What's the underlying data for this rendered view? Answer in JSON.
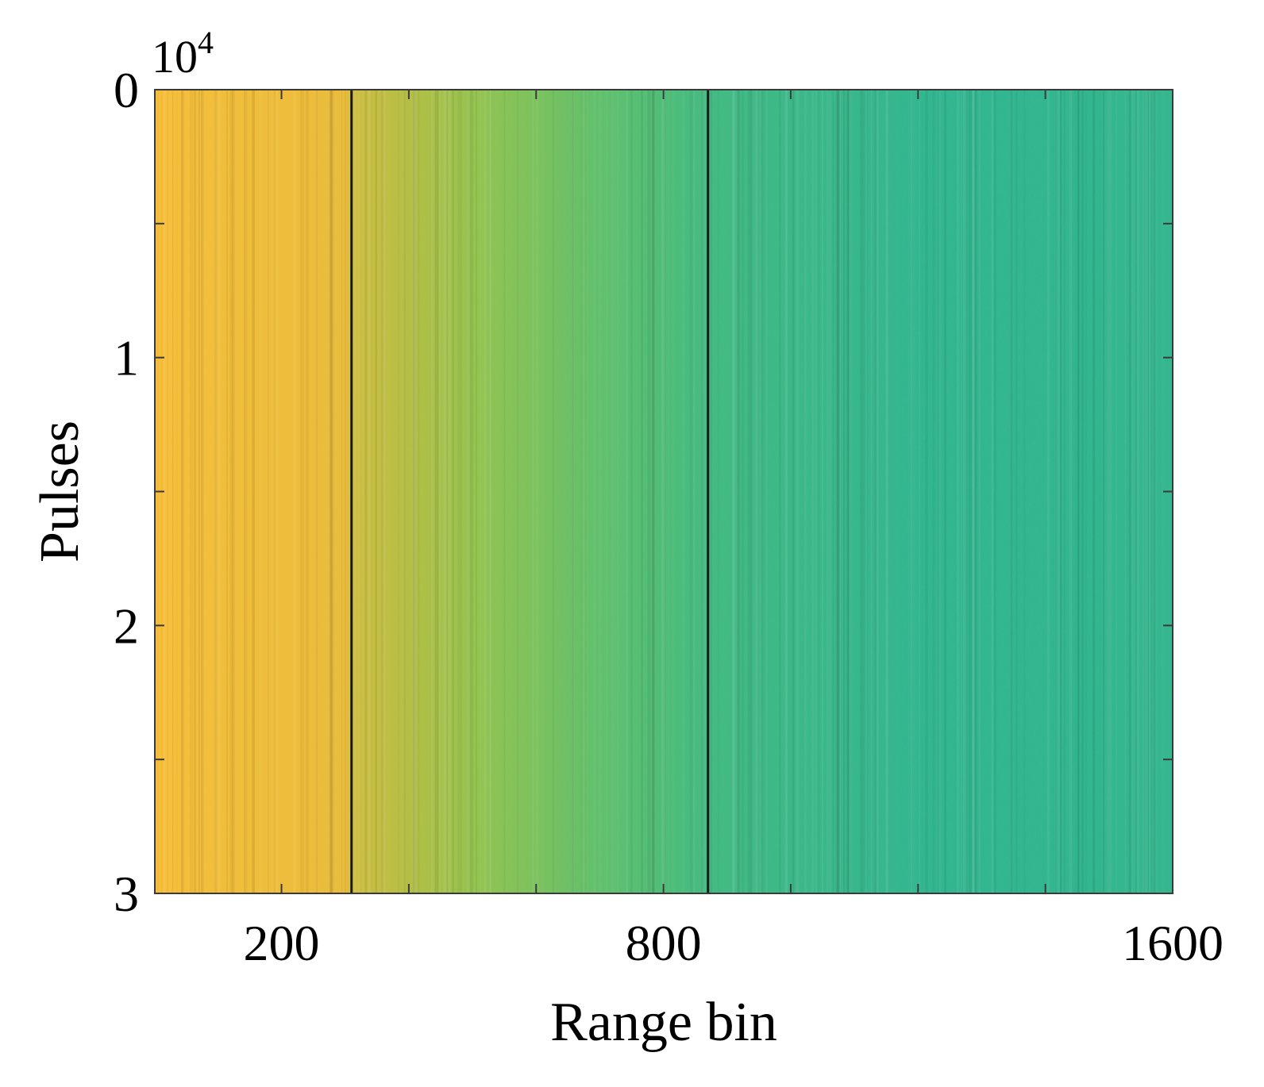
{
  "chart_data": {
    "type": "heatmap",
    "title": "",
    "xlabel": "Range bin",
    "ylabel": "Pulses",
    "y_exponent_base": "10",
    "y_exponent_power": "4",
    "xlim": [
      1,
      1600
    ],
    "ylim": [
      0,
      3
    ],
    "y_reversed": true,
    "x_ticks": [
      200,
      800,
      1600
    ],
    "x_tick_labels": [
      "200",
      "800",
      "1600"
    ],
    "x_minor_ticks": [
      400,
      600,
      1000,
      1200,
      1400
    ],
    "y_ticks": [
      0,
      1,
      2,
      3
    ],
    "y_tick_labels": [
      "0",
      "1",
      "2",
      "3"
    ],
    "y_minor_ticks": [
      0.5,
      1.5,
      2.5
    ],
    "grid": false,
    "colormap": "parula",
    "colormap_stops": [
      "#f9c03a",
      "#e6bb3c",
      "#c3bd40",
      "#8fc452",
      "#58bf72",
      "#2fb592",
      "#21b0a6"
    ],
    "intensity_by_range_bin": [
      {
        "bin": 1,
        "level": 0.98
      },
      {
        "bin": 100,
        "level": 0.93
      },
      {
        "bin": 200,
        "level": 0.9
      },
      {
        "bin": 300,
        "level": 0.86
      },
      {
        "bin": 310,
        "level": 0.72
      },
      {
        "bin": 400,
        "level": 0.62
      },
      {
        "bin": 500,
        "level": 0.52
      },
      {
        "bin": 600,
        "level": 0.44
      },
      {
        "bin": 700,
        "level": 0.36
      },
      {
        "bin": 800,
        "level": 0.3
      },
      {
        "bin": 870,
        "level": 0.25
      },
      {
        "bin": 1000,
        "level": 0.22
      },
      {
        "bin": 1200,
        "level": 0.18
      },
      {
        "bin": 1400,
        "level": 0.18
      },
      {
        "bin": 1600,
        "level": 0.19
      }
    ],
    "vertical_lines": [
      {
        "range_bin": 310,
        "color": "#1a1a1a"
      },
      {
        "range_bin": 870,
        "color": "#1a1a1a"
      }
    ]
  }
}
